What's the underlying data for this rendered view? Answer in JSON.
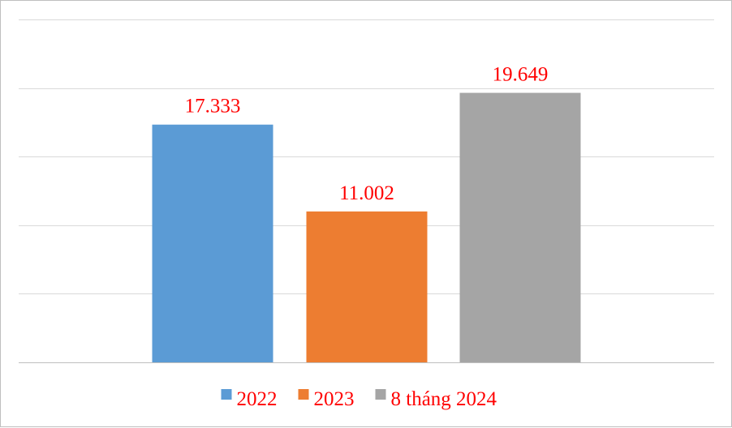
{
  "chart_data": {
    "type": "bar",
    "categories": [
      "2022",
      "2023",
      "8 tháng 2024"
    ],
    "values": [
      17.333,
      11.002,
      19.649
    ],
    "value_labels": [
      "17.333",
      "11.002",
      "19.649"
    ],
    "colors": [
      "#5b9bd5",
      "#ed7d31",
      "#a5a5a5"
    ],
    "ylim": [
      0,
      25
    ],
    "grid": true,
    "legend": "bottom",
    "label_color": "#ff0000"
  }
}
